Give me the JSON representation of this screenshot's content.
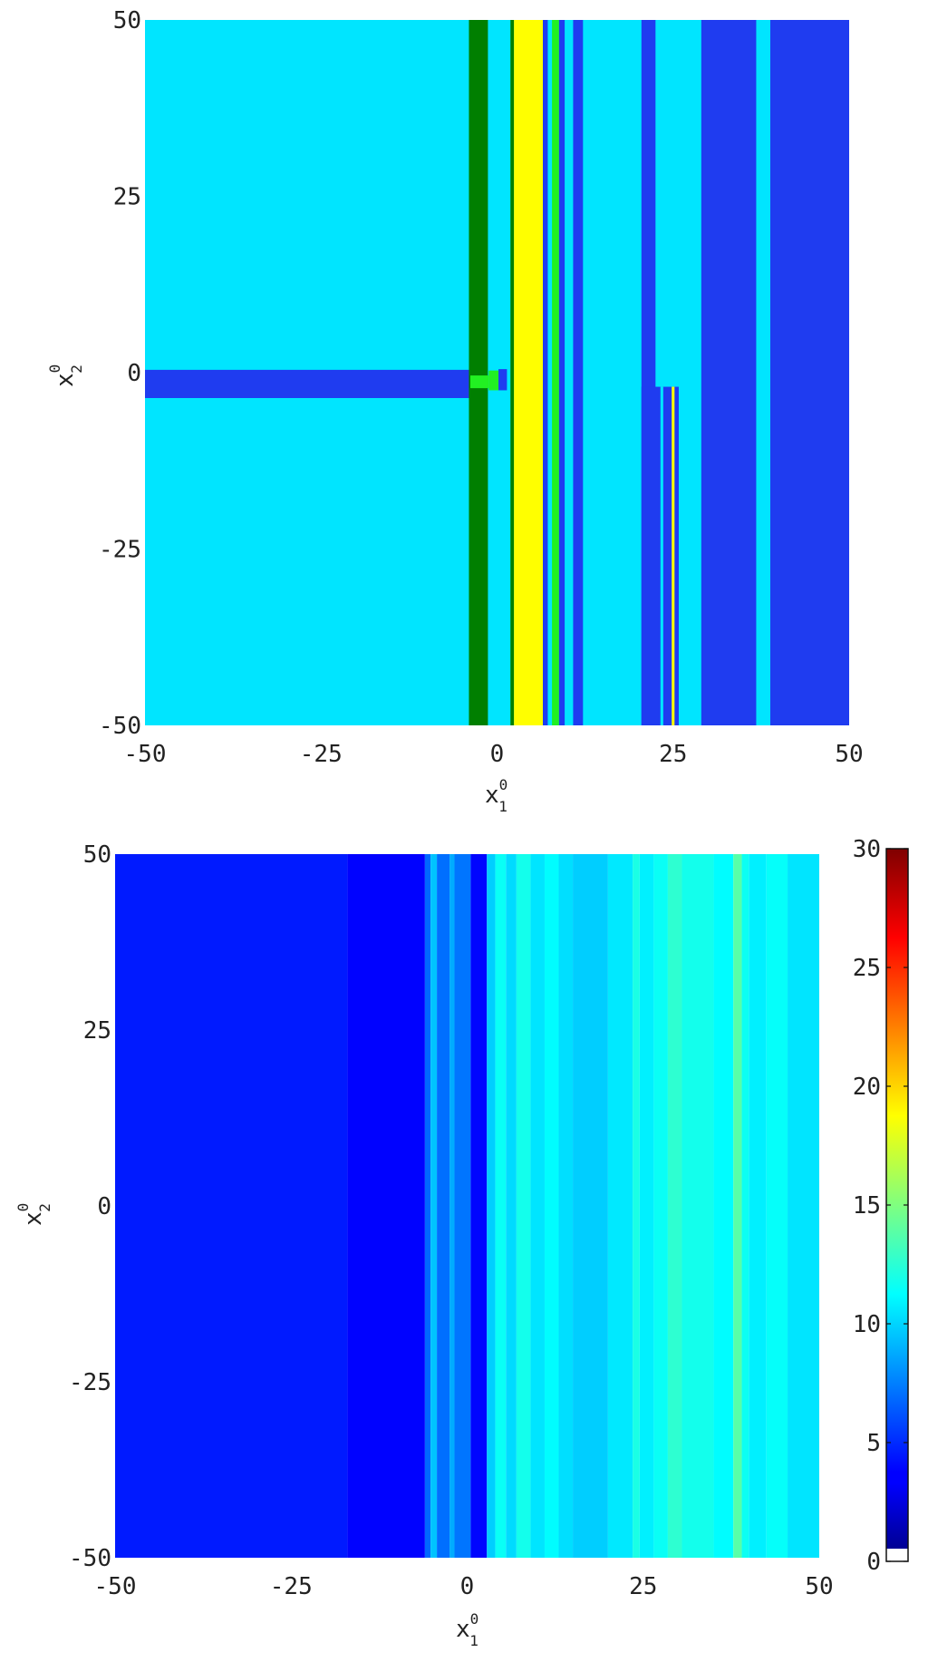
{
  "chart_data": [
    {
      "type": "heatmap",
      "title": "",
      "xlabel": {
        "base": "x",
        "sub": "1",
        "sup": "0"
      },
      "ylabel": {
        "base": "x",
        "sub": "2",
        "sup": "0"
      },
      "xlim": [
        -50,
        50
      ],
      "ylim": [
        -50,
        50
      ],
      "xticks": [
        -50,
        -25,
        0,
        25,
        50
      ],
      "yticks": [
        50,
        25,
        0,
        -25,
        -50
      ],
      "xtick_labels": [
        "-50",
        "-25",
        "0",
        "25",
        "50"
      ],
      "ytick_labels": [
        "50",
        "25",
        "0",
        "-25",
        "-50"
      ],
      "background_color": "#00e5ff",
      "regions": [
        {
          "x0": -50,
          "x1": -3.5,
          "y0": -3.6,
          "y1": 0.4,
          "color": "#1f3cf0"
        },
        {
          "x0": -4.0,
          "x1": -1.3,
          "y0": -50,
          "y1": 50,
          "color": "#007f00"
        },
        {
          "x0": -3.8,
          "x1": -1.2,
          "y0": -2.2,
          "y1": -0.4,
          "color": "#22f022"
        },
        {
          "x0": -1.2,
          "x1": 0.2,
          "y0": -2.5,
          "y1": 0.3,
          "color": "#22f022"
        },
        {
          "x0": 0.2,
          "x1": 1.4,
          "y0": -2.5,
          "y1": 0.5,
          "color": "#1f3cf0"
        },
        {
          "x0": 1.9,
          "x1": 2.4,
          "y0": -50,
          "y1": 50,
          "color": "#007f00"
        },
        {
          "x0": 2.4,
          "x1": 6.5,
          "y0": -50,
          "y1": 50,
          "color": "#ffff00"
        },
        {
          "x0": 6.5,
          "x1": 7.2,
          "y0": -50,
          "y1": 50,
          "color": "#1f3cf0"
        },
        {
          "x0": 7.8,
          "x1": 8.8,
          "y0": -50,
          "y1": 50,
          "color": "#22f022"
        },
        {
          "x0": 8.8,
          "x1": 9.6,
          "y0": -50,
          "y1": 50,
          "color": "#1f3cf0"
        },
        {
          "x0": 10.8,
          "x1": 12.2,
          "y0": -50,
          "y1": 50,
          "color": "#1f3cf0"
        },
        {
          "x0": 20.5,
          "x1": 22.5,
          "y0": -50,
          "y1": 50,
          "color": "#1f3cf0"
        },
        {
          "x0": 20.5,
          "x1": 25.8,
          "y0": -50,
          "y1": -2.0,
          "color": "#1f3cf0"
        },
        {
          "x0": 23.2,
          "x1": 23.6,
          "y0": -50,
          "y1": -2.0,
          "color": "#00e5ff"
        },
        {
          "x0": 24.8,
          "x1": 25.2,
          "y0": -50,
          "y1": -2.0,
          "color": "#ffff00"
        },
        {
          "x0": 29,
          "x1": 36.8,
          "y0": -50,
          "y1": 50,
          "color": "#1f3cf0"
        },
        {
          "x0": 38.8,
          "x1": 50,
          "y0": -50,
          "y1": 50,
          "color": "#1f3cf0"
        }
      ]
    },
    {
      "type": "heatmap",
      "title": "",
      "xlabel": {
        "base": "x",
        "sub": "1",
        "sup": "0"
      },
      "ylabel": {
        "base": "x",
        "sub": "2",
        "sup": "0"
      },
      "xlim": [
        -50,
        50
      ],
      "ylim": [
        -50,
        50
      ],
      "xticks": [
        -50,
        -25,
        0,
        25,
        50
      ],
      "yticks": [
        50,
        25,
        0,
        -25,
        -50
      ],
      "xtick_labels": [
        "-50",
        "-25",
        "0",
        "25",
        "50"
      ],
      "ytick_labels": [
        "50",
        "25",
        "0",
        "-25",
        "-50"
      ],
      "colorbar": {
        "colormap": "jet",
        "range": [
          0,
          30
        ],
        "ticks": [
          0,
          5,
          10,
          15,
          20,
          25,
          30
        ],
        "tick_labels": [
          "0",
          "5",
          "10",
          "15",
          "20",
          "25",
          "30"
        ],
        "below_range_color": "#ffffff"
      },
      "columns": [
        {
          "x0": -50,
          "x1": -17,
          "value": 4.5
        },
        {
          "x0": -17,
          "x1": -6,
          "value": 3.8
        },
        {
          "x0": -6,
          "x1": -5.2,
          "value": 6.8
        },
        {
          "x0": -5.2,
          "x1": -4.3,
          "value": 9.5
        },
        {
          "x0": -4.3,
          "x1": -2.5,
          "value": 7.0
        },
        {
          "x0": -2.5,
          "x1": -1.8,
          "value": 8.8
        },
        {
          "x0": -1.8,
          "x1": 0.5,
          "value": 7.2
        },
        {
          "x0": 0.5,
          "x1": 2.8,
          "value": 3.9
        },
        {
          "x0": 2.8,
          "x1": 4,
          "value": 9.8
        },
        {
          "x0": 4,
          "x1": 5.5,
          "value": 11.5
        },
        {
          "x0": 5.5,
          "x1": 7,
          "value": 10.2
        },
        {
          "x0": 7,
          "x1": 9,
          "value": 11.8
        },
        {
          "x0": 9,
          "x1": 11,
          "value": 10.5
        },
        {
          "x0": 11,
          "x1": 13,
          "value": 11.2
        },
        {
          "x0": 13,
          "x1": 15,
          "value": 10.3
        },
        {
          "x0": 15,
          "x1": 20,
          "value": 9.8
        },
        {
          "x0": 20,
          "x1": 23.5,
          "value": 10.6
        },
        {
          "x0": 23.5,
          "x1": 24.5,
          "value": 12.0
        },
        {
          "x0": 24.5,
          "x1": 26.5,
          "value": 10.8
        },
        {
          "x0": 26.5,
          "x1": 28.5,
          "value": 11.5
        },
        {
          "x0": 28.5,
          "x1": 30.5,
          "value": 12.6
        },
        {
          "x0": 30.5,
          "x1": 35,
          "value": 11.8
        },
        {
          "x0": 35,
          "x1": 37.8,
          "value": 11.2
        },
        {
          "x0": 37.8,
          "x1": 39,
          "value": 13.8
        },
        {
          "x0": 39,
          "x1": 40,
          "value": 11.6
        },
        {
          "x0": 40,
          "x1": 42.5,
          "value": 10.8
        },
        {
          "x0": 42.5,
          "x1": 45.5,
          "value": 11.4
        },
        {
          "x0": 45.5,
          "x1": 50,
          "value": 10.5
        }
      ]
    }
  ]
}
